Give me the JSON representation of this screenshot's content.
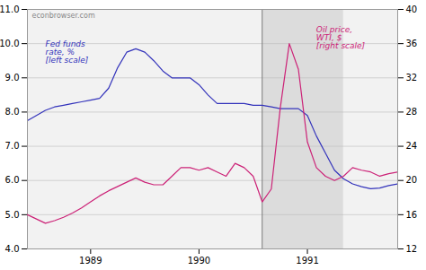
{
  "chart_data": {
    "type": "line",
    "title": "econbrowser.com",
    "x": [
      1988.417,
      1988.5,
      1988.583,
      1988.667,
      1988.75,
      1988.833,
      1988.917,
      1989.0,
      1989.083,
      1989.167,
      1989.25,
      1989.333,
      1989.417,
      1989.5,
      1989.583,
      1989.667,
      1989.75,
      1989.833,
      1989.917,
      1990.0,
      1990.083,
      1990.167,
      1990.25,
      1990.333,
      1990.417,
      1990.5,
      1990.583,
      1990.667,
      1990.75,
      1990.833,
      1990.917,
      1991.0,
      1991.083,
      1991.167,
      1991.25,
      1991.333,
      1991.417,
      1991.5,
      1991.583,
      1991.667,
      1991.75,
      1991.833
    ],
    "series": [
      {
        "name": "Fed funds\nrate, %\n[left scale]",
        "color": "#3333bb",
        "values": [
          7.75,
          7.9,
          8.05,
          8.15,
          8.2,
          8.25,
          8.3,
          8.35,
          8.4,
          8.7,
          9.3,
          9.75,
          9.85,
          9.75,
          9.5,
          9.2,
          9.0,
          9.0,
          9.0,
          8.8,
          8.5,
          8.25,
          8.25,
          8.25,
          8.25,
          8.2,
          8.2,
          8.15,
          8.1,
          8.1,
          8.1,
          7.9,
          7.3,
          6.8,
          6.3,
          6.05,
          5.9,
          5.82,
          5.76,
          5.78,
          5.85,
          5.9
        ]
      },
      {
        "name": "Oil price,\nWTI, $\n[right scale]",
        "color": "#cc2277",
        "axis": "y2",
        "values": [
          16.0,
          15.5,
          15.0,
          15.3,
          15.7,
          16.2,
          16.8,
          17.5,
          18.2,
          18.8,
          19.3,
          19.8,
          20.3,
          19.8,
          19.5,
          19.5,
          20.5,
          21.5,
          21.5,
          21.2,
          21.5,
          21.0,
          20.5,
          22.0,
          21.5,
          20.5,
          17.5,
          19.0,
          28.5,
          36.0,
          33.0,
          24.5,
          21.5,
          20.5,
          20.0,
          20.5,
          21.5,
          21.2,
          21.0,
          20.5,
          20.8,
          21.0
        ]
      }
    ],
    "xlim": [
      1988.417,
      1991.833
    ],
    "xticks": [
      1989,
      1990,
      1991
    ],
    "ylim": [
      4,
      11
    ],
    "yticks": [
      4,
      5,
      6,
      7,
      8,
      9,
      10,
      11
    ],
    "y2lim": [
      12,
      40
    ],
    "y2ticks": [
      12,
      16,
      20,
      24,
      28,
      32,
      36,
      40
    ],
    "recession": {
      "start": 1990.583,
      "end": 1991.333
    },
    "vline_x": 1990.583,
    "grid": true
  }
}
